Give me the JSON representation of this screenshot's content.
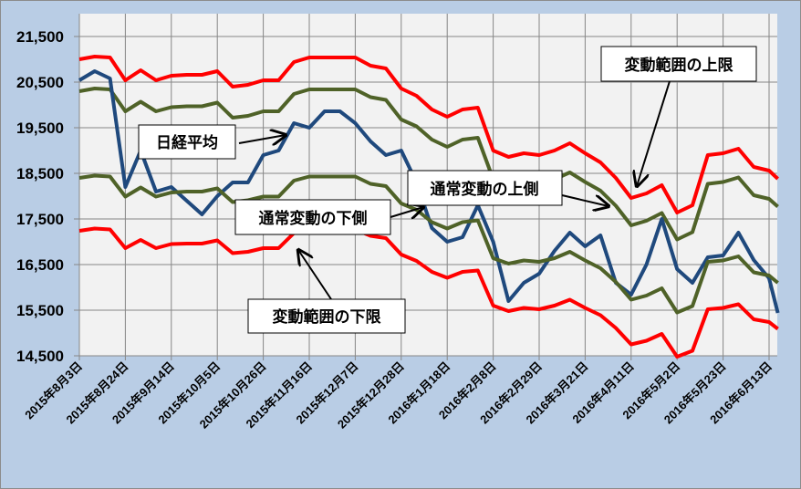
{
  "chart_data": {
    "type": "line",
    "title": "",
    "xlabel": "",
    "ylabel": "",
    "ylim": [
      14500,
      22000
    ],
    "grid": true,
    "yticks": [
      "14,500",
      "15,500",
      "16,500",
      "17,500",
      "18,500",
      "19,500",
      "20,500",
      "21,500"
    ],
    "ytick_values": [
      14500,
      15500,
      16500,
      17500,
      18500,
      19500,
      20500,
      21500
    ],
    "xticks": [
      "2015年8月3日",
      "2015年8月24日",
      "2015年9月14日",
      "2015年10月5日",
      "2015年10月26日",
      "2015年11月16日",
      "2015年12月7日",
      "2015年12月28日",
      "2016年1月18日",
      "2016年2月8日",
      "2016年2月29日",
      "2016年3月21日",
      "2016年4月11日",
      "2016年5月2日",
      "2016年5月23日",
      "2016年6月13日"
    ],
    "xtick_dates": [
      "2015-08-03",
      "2015-08-24",
      "2015-09-14",
      "2015-10-05",
      "2015-10-26",
      "2015-11-16",
      "2015-12-07",
      "2015-12-28",
      "2016-01-18",
      "2016-02-08",
      "2016-02-29",
      "2016-03-21",
      "2016-04-11",
      "2016-05-02",
      "2016-05-23",
      "2016-06-13"
    ],
    "xlim": [
      "2015-08-03",
      "2016-06-17"
    ],
    "x": [
      "2015-08-03",
      "2015-08-10",
      "2015-08-17",
      "2015-08-24",
      "2015-08-31",
      "2015-09-07",
      "2015-09-14",
      "2015-09-21",
      "2015-09-28",
      "2015-10-05",
      "2015-10-12",
      "2015-10-19",
      "2015-10-26",
      "2015-11-02",
      "2015-11-09",
      "2015-11-16",
      "2015-11-23",
      "2015-11-30",
      "2015-12-07",
      "2015-12-14",
      "2015-12-21",
      "2015-12-28",
      "2016-01-04",
      "2016-01-11",
      "2016-01-18",
      "2016-01-25",
      "2016-02-01",
      "2016-02-08",
      "2016-02-15",
      "2016-02-22",
      "2016-02-29",
      "2016-03-07",
      "2016-03-14",
      "2016-03-21",
      "2016-03-28",
      "2016-04-04",
      "2016-04-11",
      "2016-04-18",
      "2016-04-25",
      "2016-05-02",
      "2016-05-09",
      "2016-05-16",
      "2016-05-23",
      "2016-05-30",
      "2016-06-06",
      "2016-06-13",
      "2016-06-17"
    ],
    "series": [
      {
        "key": "upper_limit",
        "color": "#ff0000",
        "values": [
          21000,
          21060,
          21040,
          20540,
          20760,
          20540,
          20640,
          20660,
          20660,
          20740,
          20400,
          20440,
          20540,
          20540,
          20940,
          21040,
          21040,
          21040,
          21040,
          20860,
          20800,
          20360,
          20200,
          19900,
          19740,
          19900,
          19940,
          19000,
          18860,
          18940,
          18900,
          19000,
          19160,
          18940,
          18740,
          18400,
          17960,
          18060,
          18240,
          17640,
          17800,
          18900,
          18940,
          19040,
          18640,
          18560,
          18380
        ]
      },
      {
        "key": "upper_normal",
        "color": "#4f6228",
        "values": [
          20300,
          20360,
          20340,
          19860,
          20070,
          19860,
          19950,
          19970,
          19970,
          20050,
          19720,
          19760,
          19860,
          19860,
          20240,
          20340,
          20340,
          20340,
          20340,
          20170,
          20110,
          19680,
          19530,
          19240,
          19080,
          19240,
          19280,
          18370,
          18230,
          18310,
          18270,
          18370,
          18520,
          18310,
          18120,
          17790,
          17360,
          17460,
          17630,
          17050,
          17210,
          18270,
          18310,
          18410,
          18020,
          17940,
          17770
        ]
      },
      {
        "key": "nikkei",
        "color": "#1f497d",
        "values": [
          20540,
          20740,
          20580,
          18200,
          19000,
          18100,
          18200,
          17900,
          17600,
          18000,
          18300,
          18300,
          18900,
          19000,
          19600,
          19500,
          19860,
          19860,
          19600,
          19200,
          18900,
          19000,
          18300,
          17300,
          17000,
          17100,
          17800,
          17000,
          15700,
          16100,
          16300,
          16800,
          17200,
          16900,
          17140,
          16100,
          15840,
          16500,
          17500,
          16400,
          16100,
          16660,
          16700,
          17200,
          16600,
          16200,
          15440
        ]
      },
      {
        "key": "lower_normal",
        "color": "#4f6228",
        "values": [
          18400,
          18450,
          18430,
          17990,
          18190,
          17990,
          18080,
          18100,
          18100,
          18170,
          17870,
          17910,
          17990,
          17990,
          18340,
          18430,
          18430,
          18430,
          18430,
          18270,
          18220,
          17840,
          17700,
          17430,
          17290,
          17430,
          17470,
          16640,
          16520,
          16590,
          16560,
          16640,
          16780,
          16590,
          16420,
          16120,
          15730,
          15820,
          15980,
          15450,
          15590,
          16560,
          16590,
          16680,
          16330,
          16260,
          16100
        ]
      },
      {
        "key": "lower_limit",
        "color": "#ff0000",
        "values": [
          17240,
          17290,
          17270,
          16860,
          17040,
          16860,
          16950,
          16960,
          16960,
          17030,
          16750,
          16780,
          16860,
          16860,
          17190,
          17270,
          17270,
          17270,
          17270,
          17130,
          17080,
          16720,
          16580,
          16340,
          16210,
          16340,
          16370,
          15600,
          15480,
          15550,
          15520,
          15600,
          15730,
          15550,
          15390,
          15110,
          14750,
          14830,
          14980,
          14480,
          14610,
          15520,
          15550,
          15630,
          15300,
          15240,
          15090
        ]
      }
    ],
    "annotations": {
      "nikkei": "日経平均",
      "lower_normal": "通常変動の下側",
      "lower_limit": "変動範囲の下限",
      "upper_normal": "通常変動の上側",
      "upper_limit": "変動範囲の上限"
    },
    "colors": {
      "background": "#b9cde5",
      "plot_area": "#f2f2f2",
      "grid": "#868686"
    }
  }
}
